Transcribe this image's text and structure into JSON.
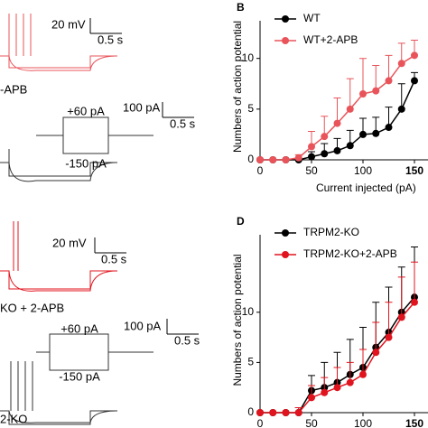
{
  "left_panel": {
    "scale_a_v": "20 mV",
    "scale_a_t": "0.5 s",
    "label_a": "-APB",
    "step_hi_a": "+60 pA",
    "step_lo_a": "-150 pA",
    "scale_b_i": "100 pA",
    "scale_b_t": "0.5 s",
    "scale_c_v": "20 mV",
    "scale_c_t": "0.5 s",
    "label_c": "KO + 2-APB",
    "step_hi_c": "+60 pA",
    "step_lo_c": "-150 pA",
    "scale_d_i": "100 pA",
    "scale_d_t": "0.5 s",
    "label_d": "2-KO"
  },
  "chart_data": [
    {
      "type": "line",
      "panel": "B",
      "xlabel": "Current injected (pA)",
      "ylabel": "Numbers of action potential",
      "x": [
        0,
        12.5,
        25,
        37.5,
        50,
        62.5,
        75,
        87.5,
        100,
        112.5,
        125,
        137.5,
        150
      ],
      "xlim": [
        0,
        150
      ],
      "xticks": [
        0,
        50,
        100,
        150
      ],
      "ylim": [
        0,
        13
      ],
      "yticks": [
        0,
        5,
        10
      ],
      "series": [
        {
          "name": "WT",
          "color": "#000000",
          "values": [
            0,
            0,
            0,
            0,
            0.3,
            0.6,
            0.9,
            1.4,
            2.5,
            2.6,
            3.2,
            5.0,
            7.8
          ],
          "errors": [
            0,
            0,
            0,
            0,
            0.5,
            1,
            1.2,
            1.5,
            1.6,
            1.6,
            2,
            2.5,
            0.8
          ]
        },
        {
          "name": "WT+2-APB",
          "color": "#e8545a",
          "values": [
            0,
            0,
            0,
            0.2,
            1.3,
            2.3,
            3.6,
            5.0,
            6.5,
            6.8,
            7.8,
            9.5,
            10.3
          ],
          "errors": [
            0,
            0,
            0,
            0.3,
            1.5,
            2,
            2.5,
            3,
            3.5,
            2.5,
            2.5,
            2,
            1.5
          ]
        }
      ]
    },
    {
      "type": "line",
      "panel": "D",
      "xlabel": "Current injected (pA)",
      "ylabel": "Numbers of action potential",
      "x": [
        0,
        12.5,
        25,
        37.5,
        50,
        62.5,
        75,
        87.5,
        100,
        112.5,
        125,
        137.5,
        150
      ],
      "xlim": [
        0,
        150
      ],
      "xticks": [
        0,
        50,
        100,
        150
      ],
      "ylim": [
        0,
        17
      ],
      "yticks": [
        0,
        5,
        10
      ],
      "series": [
        {
          "name": "TRPM2-KO",
          "color": "#000000",
          "values": [
            0,
            0,
            0,
            0,
            2.2,
            2.5,
            3.0,
            3.8,
            4.5,
            6.5,
            8.0,
            10.0,
            11.5
          ],
          "errors": [
            0,
            0,
            0,
            0.5,
            1.5,
            2.5,
            3,
            3.5,
            4,
            4.5,
            4.5,
            4.5,
            5
          ]
        },
        {
          "name": "TRPM2-KO+2-APB",
          "color": "#e0141e",
          "values": [
            0,
            0,
            0,
            0,
            1.5,
            2.0,
            2.5,
            3.0,
            3.8,
            6.0,
            7.5,
            9.5,
            11.0
          ],
          "errors": [
            0,
            0,
            0,
            0.5,
            1.2,
            1.5,
            2,
            2,
            2.5,
            3,
            3.5,
            4,
            4
          ]
        }
      ]
    }
  ]
}
